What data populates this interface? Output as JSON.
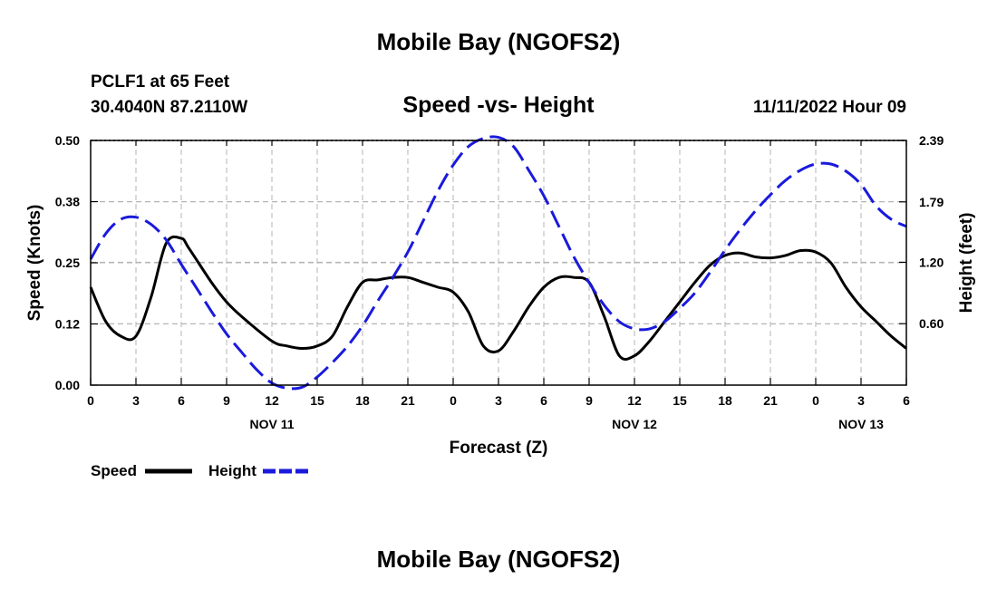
{
  "page": {
    "title": "Mobile Bay (NGOFS2)",
    "station": "PCLF1 at 65 Feet",
    "coords": "30.4040N  87.2110W",
    "subtitle": "Speed -vs- Height",
    "timestamp": "11/11/2022 Hour 09",
    "footer_title": "Mobile Bay (NGOFS2)"
  },
  "colors": {
    "speed": "#000000",
    "height": "#1a1adc",
    "grid": "#b4b4b4"
  },
  "chart_data": {
    "type": "line",
    "title": "Speed -vs- Height",
    "xlabel": "Forecast (Z)",
    "ylabel": "Speed (Knots)",
    "y2label": "Height (feet)",
    "xlim": [
      0,
      54
    ],
    "ylim": [
      0,
      0.5
    ],
    "y2lim": [
      0.0,
      2.39
    ],
    "x_ticks": [
      0,
      3,
      6,
      9,
      12,
      15,
      18,
      21,
      24,
      27,
      30,
      33,
      36,
      39,
      42,
      45,
      48,
      51,
      54
    ],
    "x_tick_labels": [
      "0",
      "3",
      "6",
      "9",
      "12",
      "15",
      "18",
      "21",
      "0",
      "3",
      "6",
      "9",
      "12",
      "15",
      "18",
      "21",
      "0",
      "3",
      "6"
    ],
    "date_labels": [
      {
        "label": "NOV 11",
        "x": 12
      },
      {
        "label": "NOV 12",
        "x": 36
      },
      {
        "label": "NOV 13",
        "x": 51
      }
    ],
    "y_ticks": [
      0.0,
      0.125,
      0.25,
      0.375,
      0.5
    ],
    "y_tick_labels": [
      "0.00",
      "0.12",
      "0.25",
      "0.38",
      "0.50"
    ],
    "y2_ticks": [
      0.6,
      1.2,
      1.79,
      2.39
    ],
    "y2_tick_labels": [
      "0.60",
      "1.20",
      "1.79",
      "2.39"
    ],
    "series": [
      {
        "name": "Speed",
        "axis": "left",
        "style": "solid",
        "x": [
          0,
          1,
          2,
          3,
          4,
          5,
          6,
          6.5,
          8,
          9,
          10,
          12,
          13,
          14,
          15,
          16,
          17,
          18,
          19,
          20,
          21,
          22,
          23,
          24,
          25,
          26,
          27,
          28,
          29,
          30,
          31,
          32,
          33,
          34,
          35,
          36,
          37,
          38,
          39,
          40,
          41,
          42,
          43,
          44,
          45,
          46,
          47,
          48,
          49,
          50,
          51,
          52,
          53,
          54
        ],
        "values": [
          0.2,
          0.13,
          0.1,
          0.1,
          0.18,
          0.29,
          0.3,
          0.28,
          0.21,
          0.17,
          0.14,
          0.09,
          0.08,
          0.075,
          0.08,
          0.1,
          0.16,
          0.21,
          0.215,
          0.22,
          0.22,
          0.21,
          0.2,
          0.19,
          0.15,
          0.08,
          0.07,
          0.11,
          0.16,
          0.2,
          0.22,
          0.22,
          0.21,
          0.14,
          0.06,
          0.06,
          0.09,
          0.13,
          0.17,
          0.21,
          0.245,
          0.265,
          0.27,
          0.262,
          0.26,
          0.265,
          0.275,
          0.272,
          0.25,
          0.2,
          0.16,
          0.13,
          0.1,
          0.075
        ]
      },
      {
        "name": "Height",
        "axis": "right",
        "style": "dashed",
        "x": [
          0,
          1,
          2,
          3,
          4,
          5,
          6,
          7,
          8,
          9,
          10,
          11,
          12,
          13,
          14,
          15,
          16,
          17,
          18,
          19,
          20,
          21,
          22,
          23,
          24,
          25,
          26,
          27,
          28,
          29,
          30,
          31,
          32,
          33,
          34,
          35,
          36,
          37,
          38,
          39,
          40,
          41,
          42,
          43,
          44,
          45,
          46,
          47,
          48,
          49,
          50,
          51,
          52,
          53,
          54
        ],
        "values": [
          1.23,
          1.48,
          1.62,
          1.64,
          1.57,
          1.42,
          1.18,
          0.95,
          0.72,
          0.5,
          0.32,
          0.15,
          0.02,
          -0.03,
          -0.02,
          0.08,
          0.22,
          0.38,
          0.58,
          0.82,
          1.05,
          1.3,
          1.6,
          1.9,
          2.15,
          2.33,
          2.41,
          2.42,
          2.33,
          2.1,
          1.85,
          1.55,
          1.25,
          1.0,
          0.78,
          0.62,
          0.55,
          0.55,
          0.62,
          0.75,
          0.9,
          1.1,
          1.32,
          1.52,
          1.7,
          1.86,
          2.0,
          2.1,
          2.16,
          2.16,
          2.09,
          1.96,
          1.75,
          1.62,
          1.55
        ]
      }
    ],
    "legend": [
      {
        "label": "Speed",
        "style": "solid"
      },
      {
        "label": "Height",
        "style": "dashed"
      }
    ],
    "grid": true
  }
}
